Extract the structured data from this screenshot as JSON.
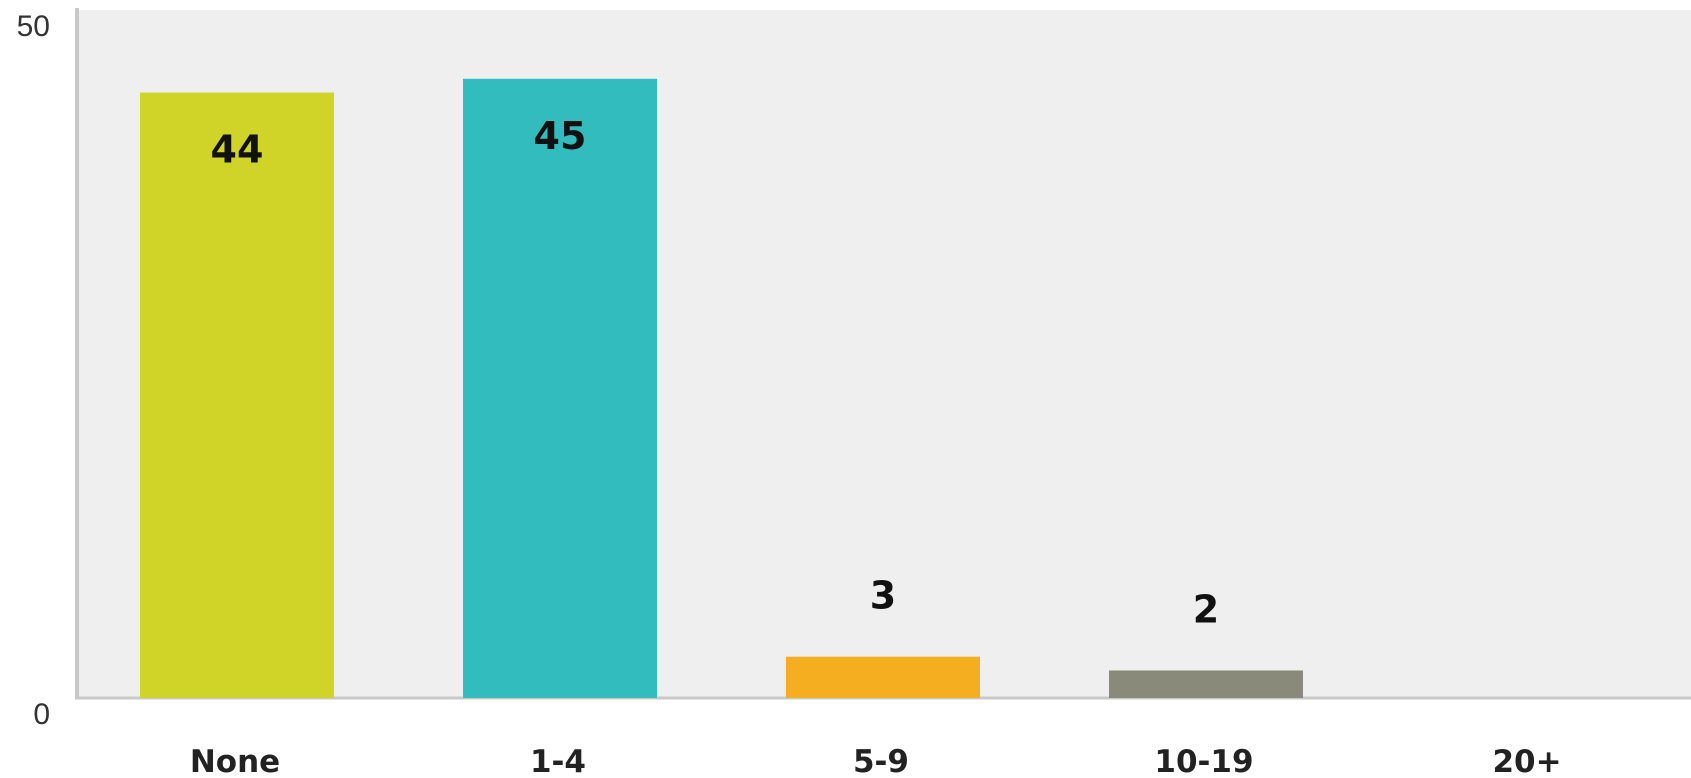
{
  "chart_data": {
    "type": "bar",
    "categories": [
      "None",
      "1-4",
      "5-9",
      "10-19",
      "20+"
    ],
    "values": [
      44,
      45,
      3,
      2,
      0
    ],
    "data_labels": [
      "44",
      "45",
      "3",
      "2",
      ""
    ],
    "colors": [
      "#d0d428",
      "#33bcbe",
      "#f5ae20",
      "#8a8a7a",
      "#cccccc"
    ],
    "ylim": [
      0,
      50
    ],
    "y_ticks": [
      "0",
      "50"
    ],
    "title": "",
    "xlabel": "",
    "ylabel": "",
    "grid": false,
    "legend": "none",
    "plot_background": "#efefef",
    "axis_color": "#c8c8c8"
  }
}
